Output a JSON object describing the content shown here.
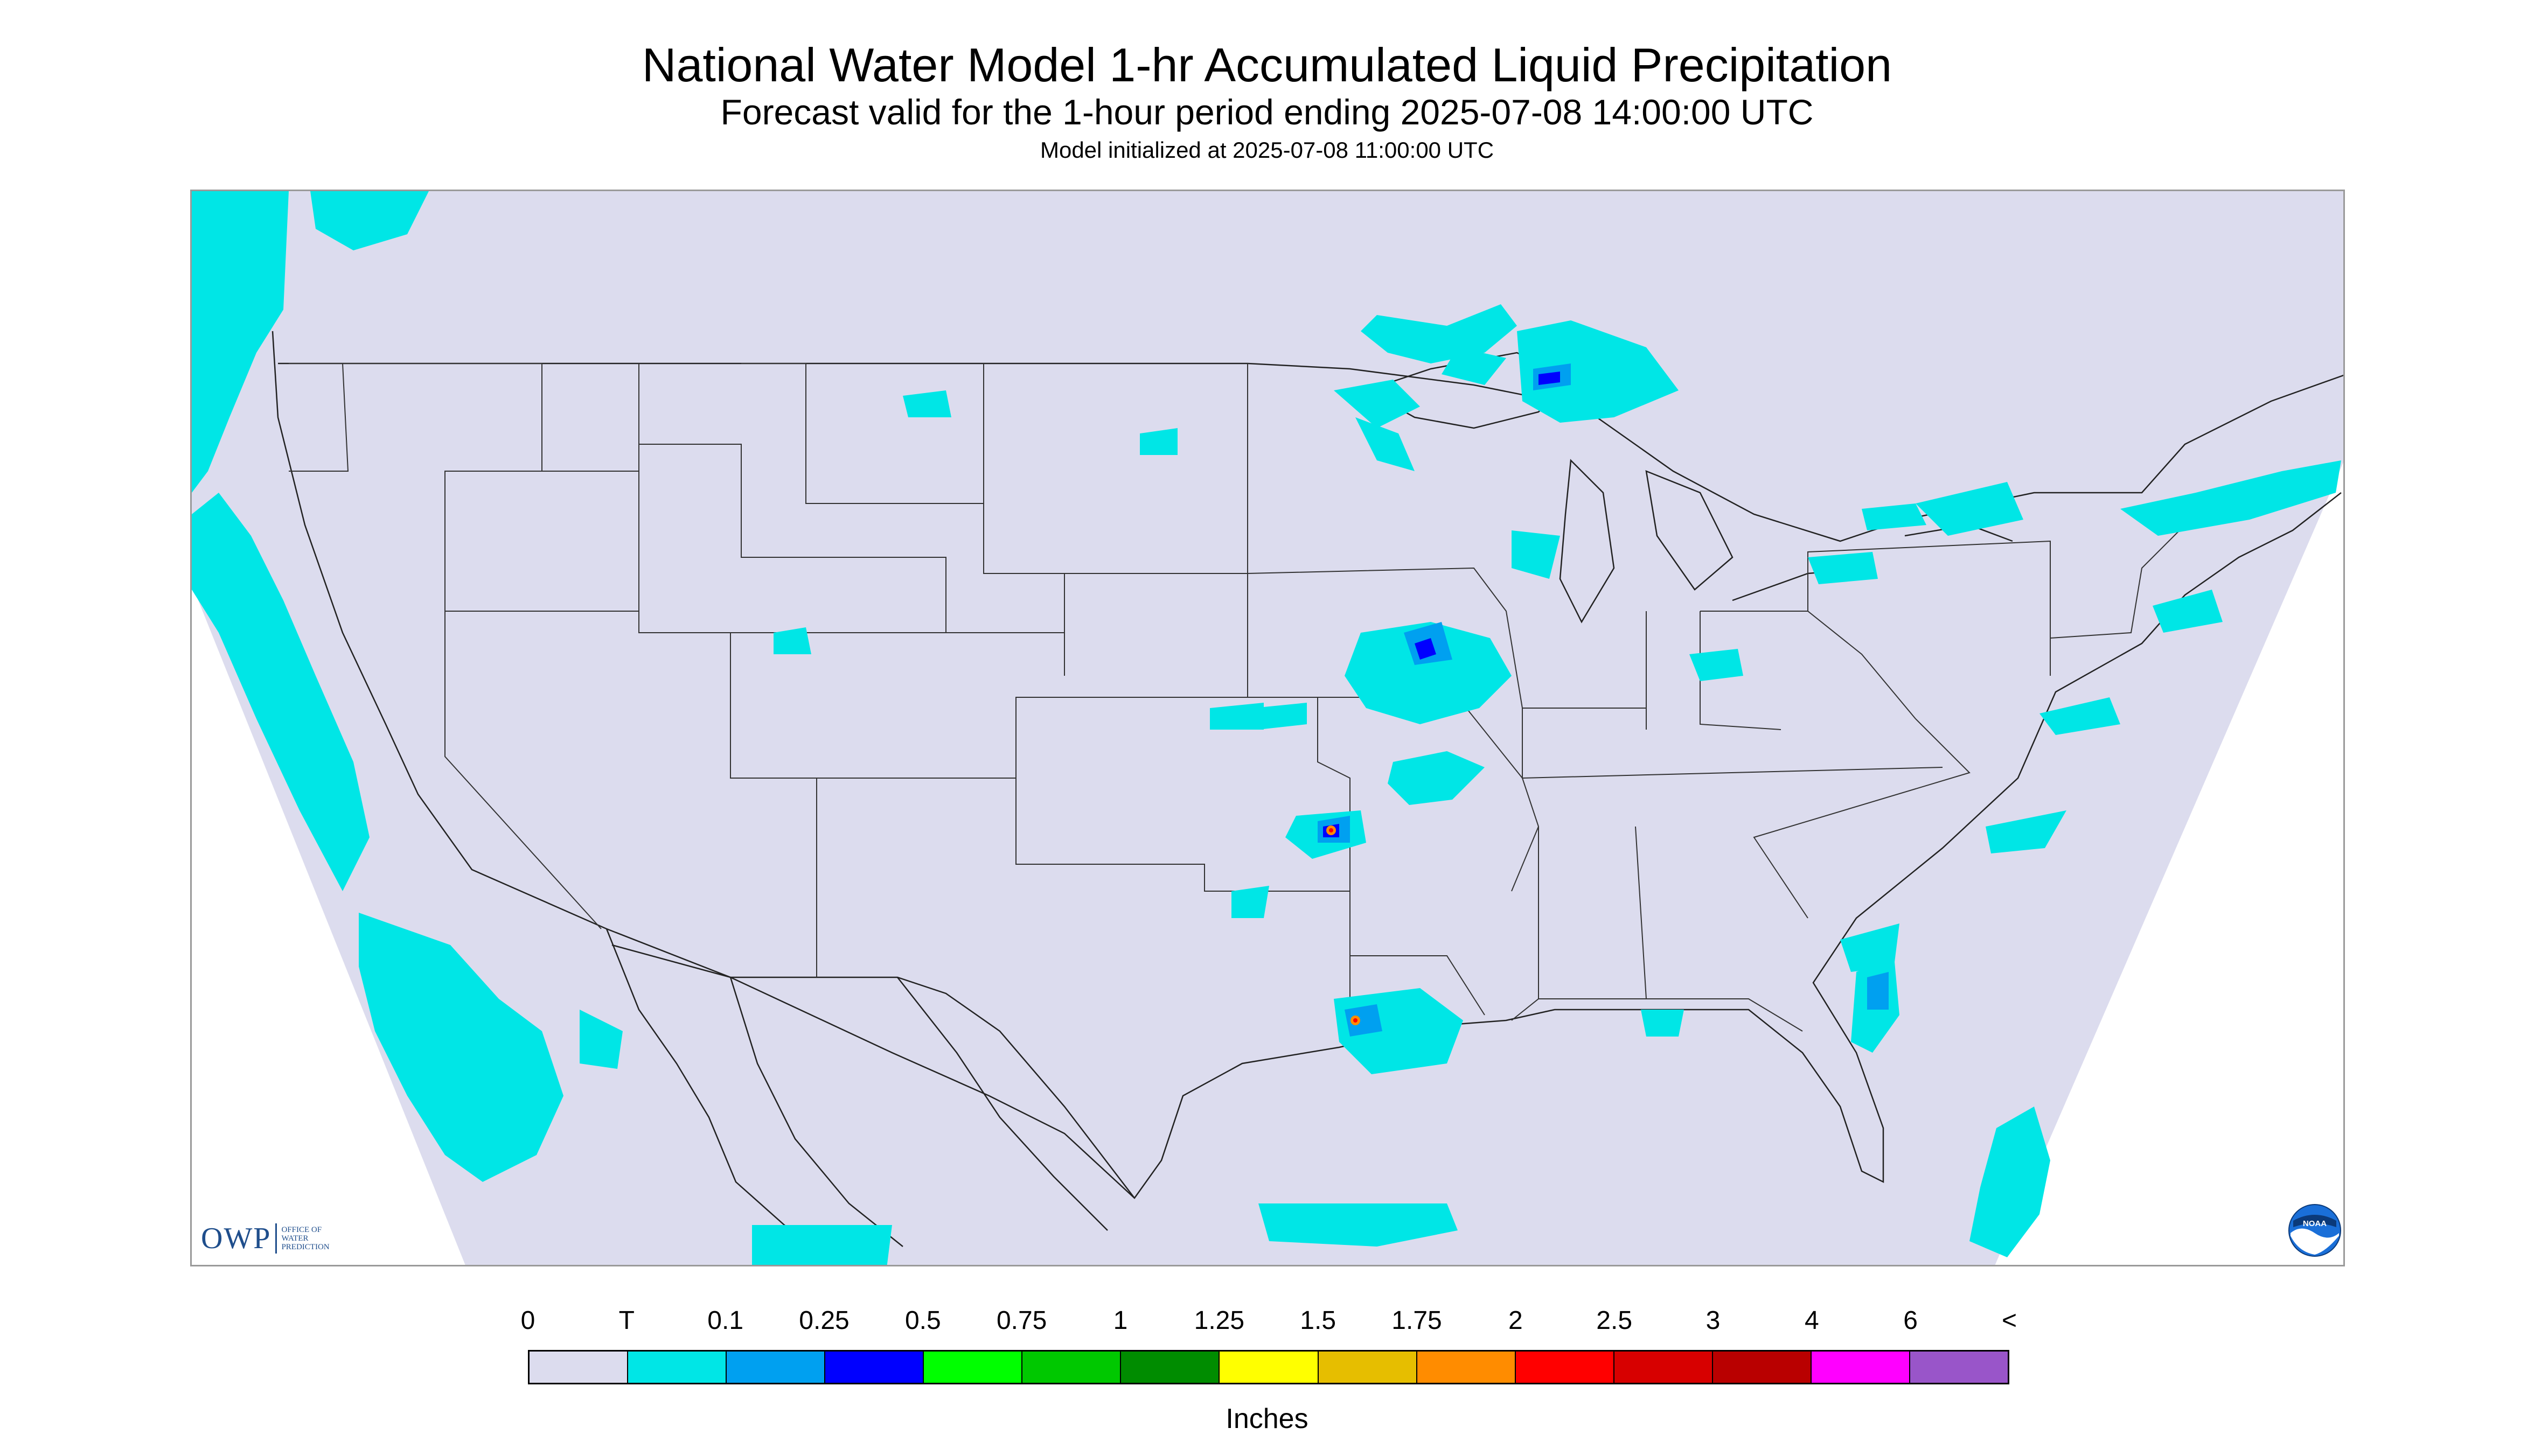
{
  "title": "National Water Model 1-hr Accumulated Liquid Precipitation",
  "subtitle": "Forecast valid for the 1-hour period ending 2025-07-08 14:00:00 UTC",
  "init": "Model initialized at 2025-07-08 11:00:00 UTC",
  "logo_owp": {
    "letters": "OWP",
    "line1": "Office of",
    "line2": "Water",
    "line3": "Prediction"
  },
  "logo_noaa": {
    "text": "NOAA"
  },
  "colors": {
    "background": "#dcdcee",
    "trace": "#00e6e6",
    "light_blue": "#00a0f0",
    "blue": "#0000ff",
    "orange": "#ff8c00",
    "red": "#ff0000",
    "border_line": "#222222"
  },
  "colorbar": {
    "units": "Inches",
    "tick_labels": [
      "0",
      "T",
      "0.1",
      "0.25",
      "0.5",
      "0.75",
      "1",
      "1.25",
      "1.5",
      "1.75",
      "2",
      "2.5",
      "3",
      "4",
      "6",
      "<"
    ],
    "colors": [
      "#dcdcee",
      "#00e6e6",
      "#00a0f0",
      "#0000ff",
      "#00ff00",
      "#00c800",
      "#008c00",
      "#ffff00",
      "#e6be00",
      "#ff8c00",
      "#ff0000",
      "#d70000",
      "#b90000",
      "#ff00ff",
      "#9955c9"
    ]
  }
}
